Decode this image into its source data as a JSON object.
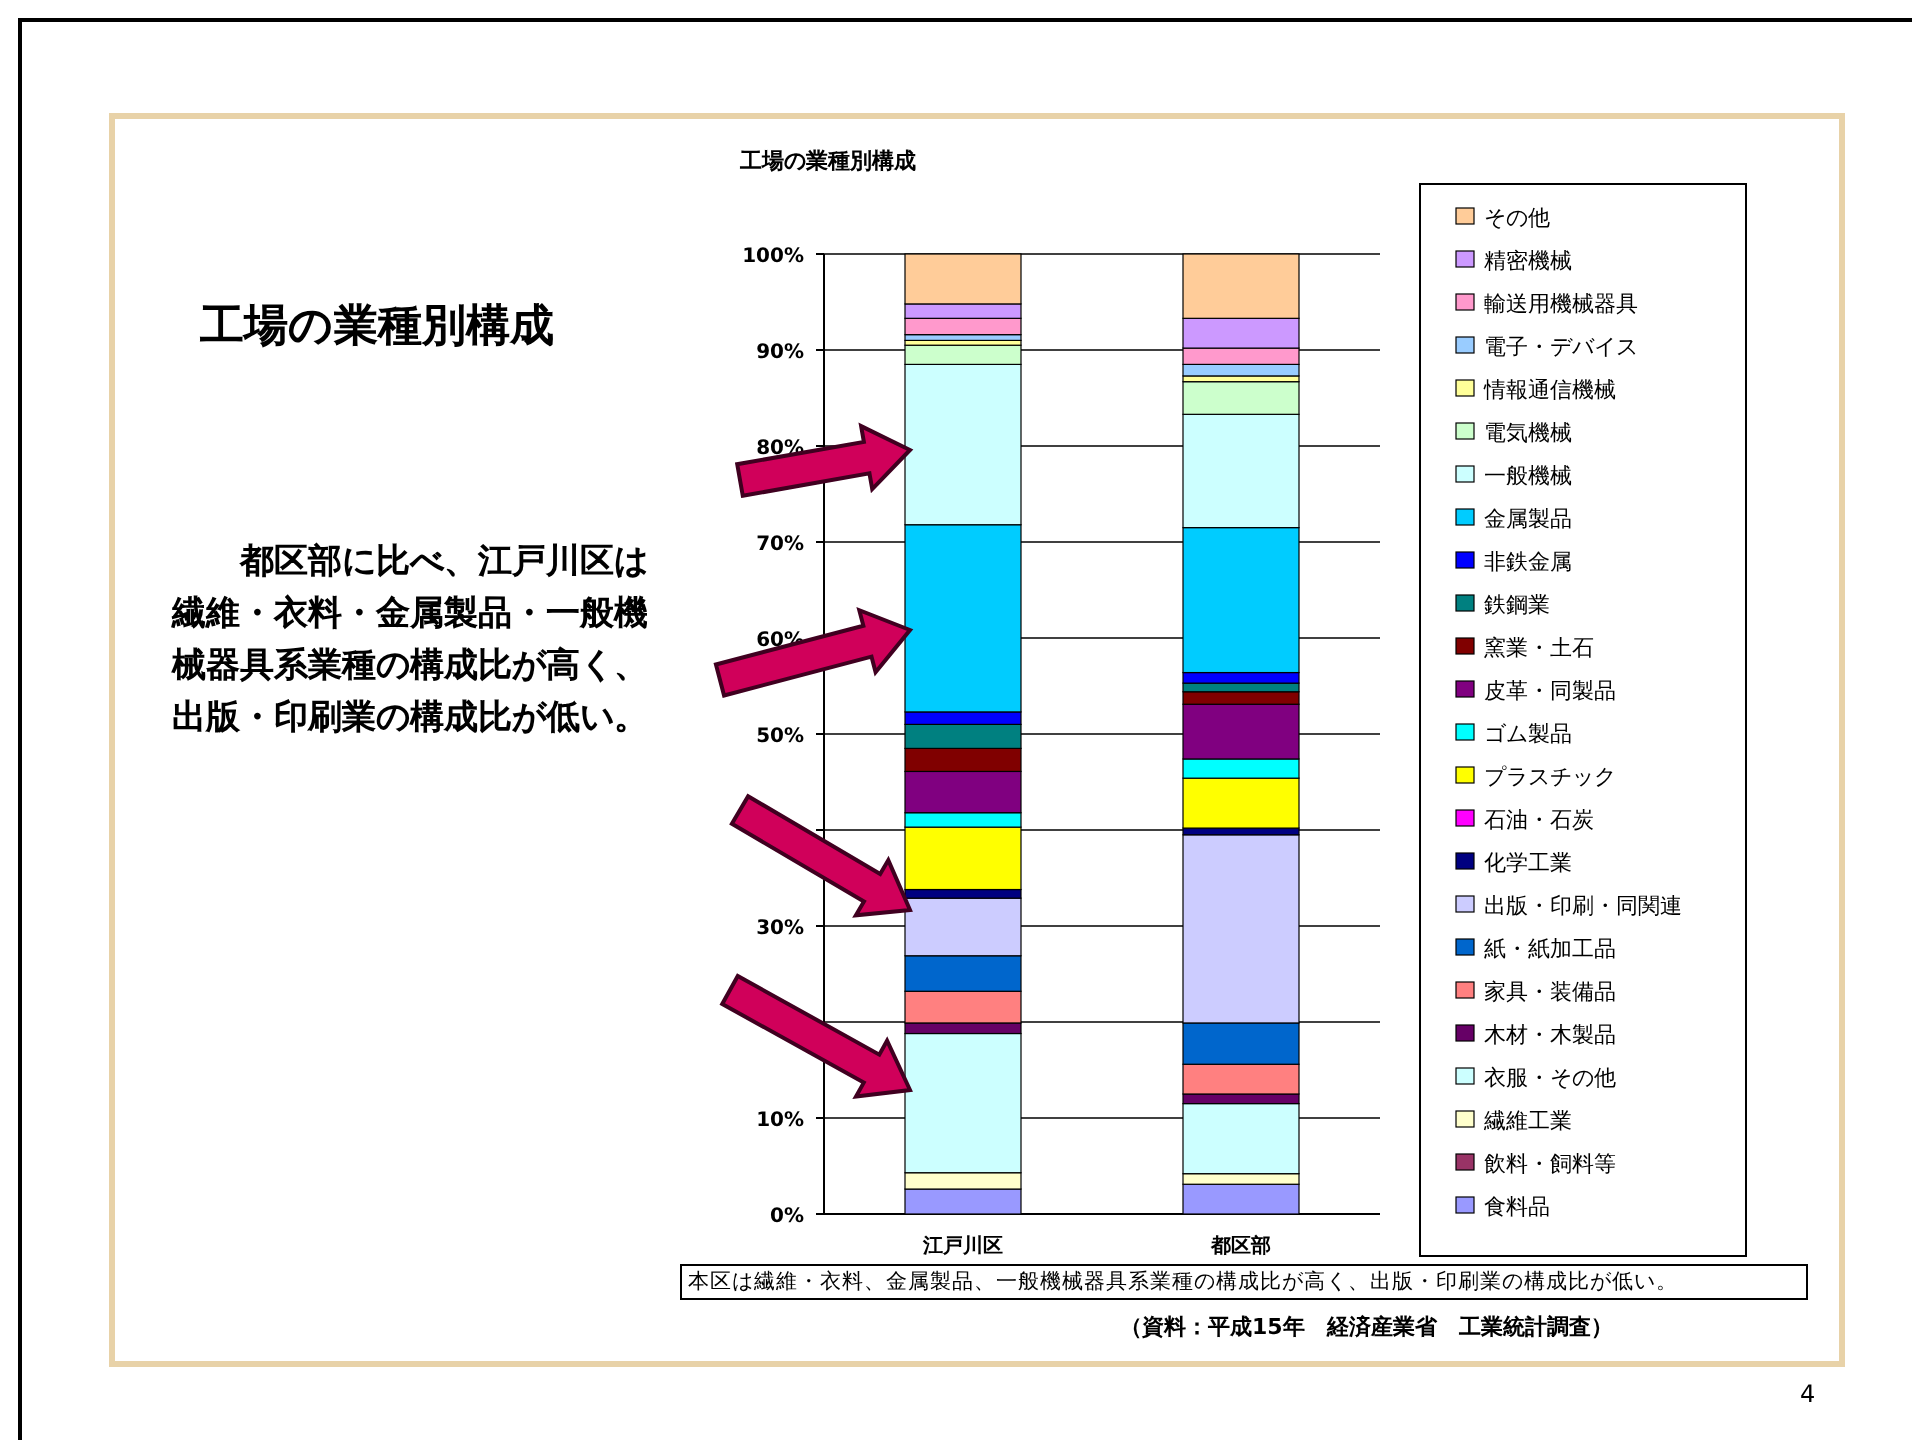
{
  "chart_data": {
    "type": "bar",
    "stacked": true,
    "title": "工場の業種別構成",
    "categories": [
      "江戸川区",
      "都区部"
    ],
    "ylim": [
      0,
      100
    ],
    "yticks": [
      {
        "value": 0,
        "label": "0%"
      },
      {
        "value": 10,
        "label": "10%"
      },
      {
        "value": 20,
        "label": null
      },
      {
        "value": 30,
        "label": "30%"
      },
      {
        "value": 40,
        "label": null
      },
      {
        "value": 50,
        "label": "50%"
      },
      {
        "value": 60,
        "label": "60%"
      },
      {
        "value": 70,
        "label": "70%"
      },
      {
        "value": 80,
        "label": "80%"
      },
      {
        "value": 90,
        "label": "90%"
      },
      {
        "value": 100,
        "label": "100%"
      }
    ],
    "grid": "y",
    "legend": "right",
    "series": [
      {
        "name": "食料品",
        "color": "#9999ff",
        "values": [
          2.6,
          3.1
        ]
      },
      {
        "name": "飲料・飼料等",
        "color": "#993366",
        "values": [
          null,
          null
        ]
      },
      {
        "name": "繊維工業",
        "color": "#ffffcc",
        "values": [
          1.7,
          1.1
        ]
      },
      {
        "name": "衣服・その他",
        "color": "#ccffff",
        "values": [
          14.5,
          7.3
        ]
      },
      {
        "name": "木材・木製品",
        "color": "#660066",
        "values": [
          1.1,
          1.0
        ]
      },
      {
        "name": "家具・装備品",
        "color": "#ff8080",
        "values": [
          3.3,
          3.1
        ]
      },
      {
        "name": "紙・紙加工品",
        "color": "#0066cc",
        "values": [
          3.7,
          4.3
        ]
      },
      {
        "name": "出版・印刷・同関連",
        "color": "#ccccff",
        "values": [
          6.0,
          19.6
        ]
      },
      {
        "name": "化学工業",
        "color": "#000080",
        "values": [
          0.9,
          0.7
        ]
      },
      {
        "name": "石油・石炭",
        "color": "#ff00ff",
        "values": [
          0,
          0
        ]
      },
      {
        "name": "プラスチック",
        "color": "#ffff00",
        "values": [
          6.5,
          5.2
        ]
      },
      {
        "name": "ゴム製品",
        "color": "#00ffff",
        "values": [
          1.5,
          2.0
        ]
      },
      {
        "name": "皮革・同製品",
        "color": "#800080",
        "values": [
          4.3,
          5.7
        ]
      },
      {
        "name": "窯業・土石",
        "color": "#800000",
        "values": [
          2.4,
          1.3
        ]
      },
      {
        "name": "鉄鋼業",
        "color": "#008080",
        "values": [
          2.5,
          0.9
        ]
      },
      {
        "name": "非鉄金属",
        "color": "#0000ff",
        "values": [
          1.3,
          1.1
        ]
      },
      {
        "name": "金属製品",
        "color": "#00ccff",
        "values": [
          19.5,
          15.1
        ]
      },
      {
        "name": "一般機械",
        "color": "#ccffff",
        "values": [
          16.7,
          11.8
        ]
      },
      {
        "name": "電気機械",
        "color": "#ccffcc",
        "values": [
          2.0,
          3.4
        ]
      },
      {
        "name": "情報通信機械",
        "color": "#ffff99",
        "values": [
          0.5,
          0.6
        ]
      },
      {
        "name": "電子・デバイス",
        "color": "#99ccff",
        "values": [
          0.6,
          1.2
        ]
      },
      {
        "name": "輸送用機械器具",
        "color": "#ff99cc",
        "values": [
          1.7,
          1.7
        ]
      },
      {
        "name": "精密機械",
        "color": "#cc99ff",
        "values": [
          1.5,
          3.1
        ]
      },
      {
        "name": "その他",
        "color": "#ffcc99",
        "values": [
          5.2,
          6.7
        ]
      }
    ],
    "annotations": [
      "工場の業種別構成",
      "都区部に比べ、江戸川区は繊維・衣料・金属製品・一般機械器具系業種の構成比が高く、出版・印刷業の構成比が低い。",
      "本区は繊維・衣料、金属製品、一般機械器具系業種の構成比が高く、出版・印刷業の構成比が低い。",
      "（資料：平成15年　経済産業省　工業統計調査）",
      "4"
    ]
  }
}
